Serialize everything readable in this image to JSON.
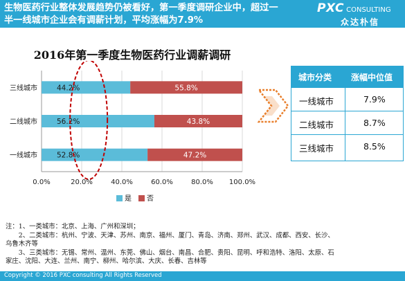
{
  "header": {
    "headline_line1": "生物医药行业整体发展趋势仍被看好，第一季度调研企业中，超过一",
    "headline_line2": "半一线城市企业会有调薪计划，平均涨幅为7.9%",
    "logo_main": "PXC",
    "logo_suffix": " CONSULTING",
    "logo_sub": "众达朴信"
  },
  "colors": {
    "accent": "#2aa6d3",
    "yes": "#5bbcd9",
    "no": "#c0504d",
    "highlight": "#c00000",
    "arrow": "#e87e2a"
  },
  "chart_data": {
    "type": "bar",
    "orientation": "horizontal",
    "stacked": true,
    "title": "2016年第一季度生物医药行业调薪调研",
    "categories": [
      "三线城市",
      "二线城市",
      "一线城市"
    ],
    "series": [
      {
        "name": "是",
        "values": [
          44.2,
          56.2,
          52.8
        ],
        "labels": [
          "44.2%",
          "56.2%",
          "52.8%"
        ]
      },
      {
        "name": "否",
        "values": [
          55.8,
          43.8,
          47.2
        ],
        "labels": [
          "55.8%",
          "43.8%",
          "47.2%"
        ]
      }
    ],
    "xticks": [
      "0.0%",
      "20.0%",
      "40.0%",
      "60.0%",
      "80.0%",
      "100.0%"
    ],
    "xlim": [
      0,
      100
    ],
    "legend": "bottom",
    "grid": true,
    "highlight": "dashed ellipse around the 是 labels"
  },
  "table": {
    "headers": [
      "城市分类",
      "涨幅中位值"
    ],
    "rows": [
      {
        "city": "一线城市",
        "value": "7.9%"
      },
      {
        "city": "二线城市",
        "value": "8.7%"
      },
      {
        "city": "三线城市",
        "value": "8.5%"
      }
    ]
  },
  "notes": [
    "注：1、一类城市：北京、上海、广州和深圳；",
    "　　2、二类城市：杭州、宁波、天津、苏州、南京、福州、厦门、青岛、济南、郑州、武汉、成都、西安、长沙、",
    "乌鲁木齐等",
    "　　3、三类城市：无锡、常州、温州、东莞、佛山、烟台、南昌、合肥、贵阳、昆明、呼和浩特、洛阳、太原、石",
    "家庄、沈阳、大连、兰州、南宁、柳州、哈尔滨、大庆、长春、吉林等"
  ],
  "footer": {
    "copyright": "Copyright © 2016  PXC consulting All Rights Reserved"
  }
}
